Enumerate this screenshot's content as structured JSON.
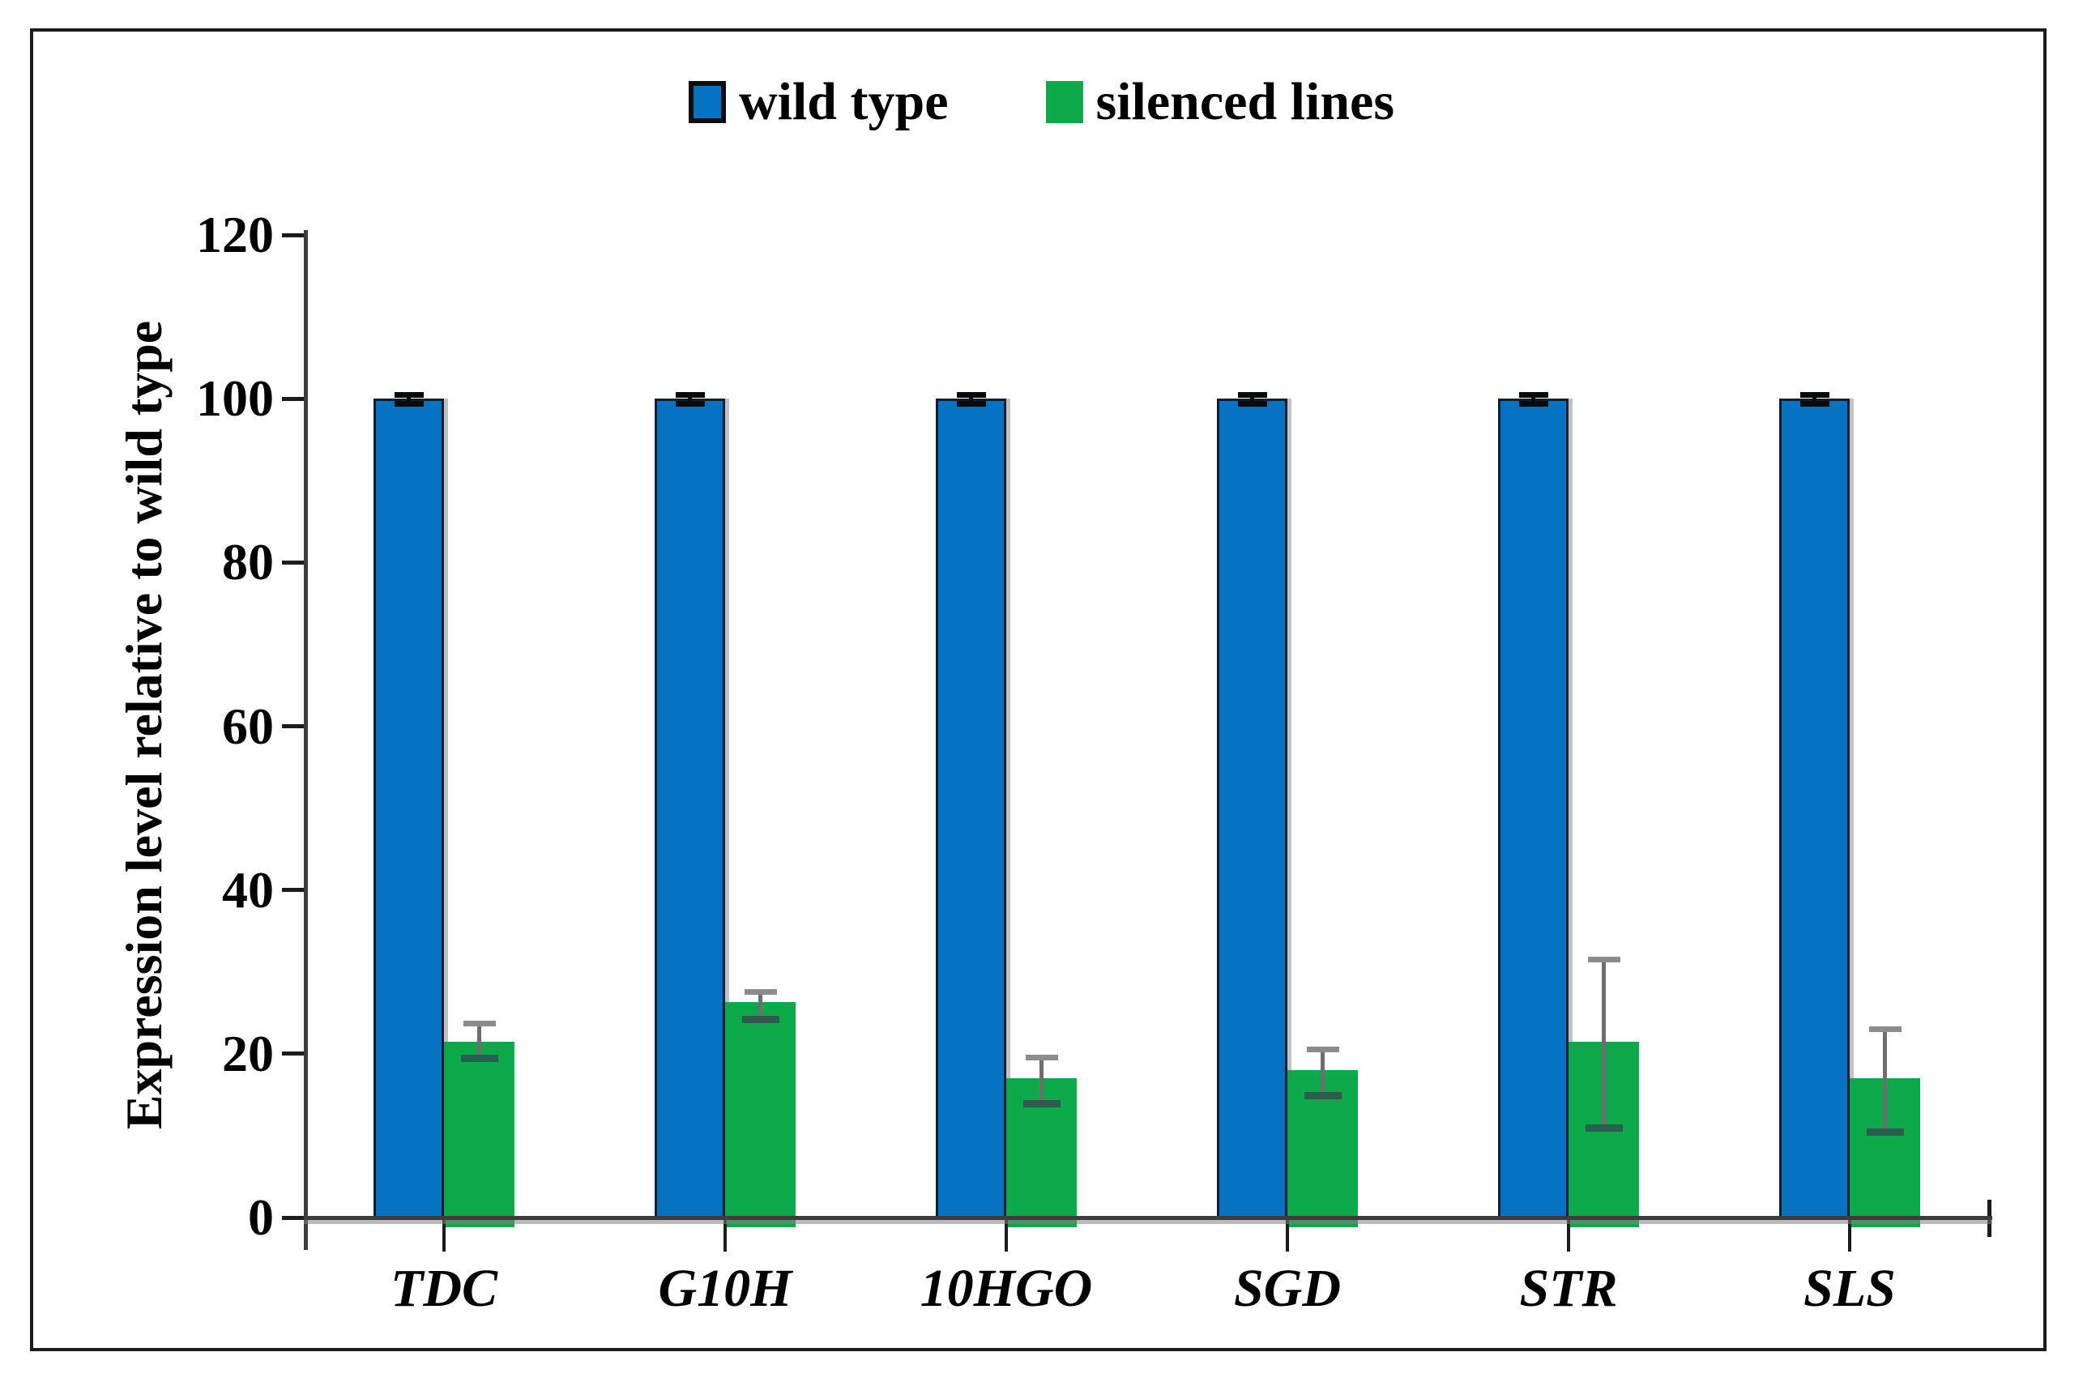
{
  "figure": {
    "kind": "grouped-bar-figure",
    "background": "#ffffff",
    "frame_color": "#1c1c1c"
  },
  "legend": {
    "position": "top-center",
    "items": [
      {
        "label": "wild type",
        "color": "#0572C1",
        "border": "#0d0d0d"
      },
      {
        "label": "silenced lines",
        "color": "#0CA94A",
        "border": "none"
      }
    ]
  },
  "chart_data": {
    "type": "bar",
    "title": "",
    "categories": [
      "TDC",
      "G10H",
      "10HGO",
      "SGD",
      "STR",
      "SLS"
    ],
    "series": [
      {
        "name": "wild type",
        "color": "#0572C1",
        "border_color": "#0c1e31",
        "values": [
          100,
          100,
          100,
          100,
          100,
          100
        ],
        "err_high": [
          0.5,
          0.5,
          0.5,
          0.5,
          0.5,
          0.5
        ],
        "err_low": [
          0.6,
          0.6,
          0.6,
          0.6,
          0.6,
          0.6
        ],
        "error_colors": {
          "stem": "#0a0a0a",
          "top_cap": "#0a0a0a",
          "bottom_cap": "#0a0a0a"
        }
      },
      {
        "name": "silenced lines",
        "color": "#0CA94A",
        "border_color": "none",
        "values": [
          21.5,
          26.3,
          17,
          18,
          21.5,
          17
        ],
        "err_high": [
          2.2,
          1.3,
          2.5,
          2.5,
          10,
          6
        ],
        "err_low": [
          2.0,
          2.0,
          3.0,
          3.0,
          10.5,
          6.5
        ],
        "error_colors": {
          "stem": "#6e6e6e",
          "top_cap": "#8c8c8c",
          "bottom_cap": "#2a5c50"
        }
      }
    ],
    "xlabel": "",
    "ylabel": "Expression level relative to wild type",
    "ylim": [
      0,
      120
    ],
    "yticks": [
      0,
      20,
      40,
      60,
      80,
      100,
      120
    ],
    "grid": false,
    "legend_position": "top-center",
    "axis_color": "#3c3c3c",
    "tick_color": "#1c1c1c",
    "text_color": "#000000"
  }
}
